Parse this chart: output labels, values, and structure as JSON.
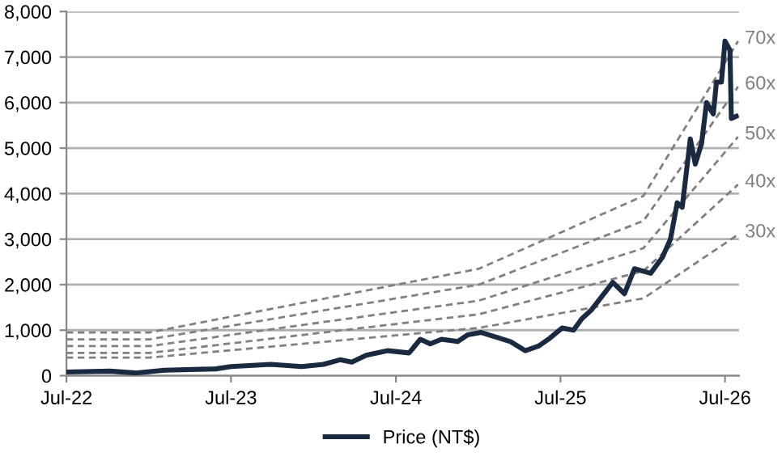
{
  "chart_data": {
    "type": "line",
    "xlim": [
      "2022-07-01",
      "2026-08-01"
    ],
    "xticks": [
      {
        "value": "2022-07-01",
        "label": "Jul-22"
      },
      {
        "value": "2023-07-01",
        "label": "Jul-23"
      },
      {
        "value": "2024-07-01",
        "label": "Jul-24"
      },
      {
        "value": "2025-07-01",
        "label": "Jul-25"
      },
      {
        "value": "2026-07-01",
        "label": "Jul-26"
      }
    ],
    "ylim": [
      0,
      8000
    ],
    "yticks": [
      0,
      {
        "value": 1000,
        "label": "1,000"
      },
      {
        "value": 2000,
        "label": "2,000"
      },
      {
        "value": 3000,
        "label": "3,000"
      },
      {
        "value": 4000,
        "label": "4,000"
      },
      {
        "value": 5000,
        "label": "5,000"
      },
      {
        "value": 6000,
        "label": "6,000"
      },
      {
        "value": 7000,
        "label": "7,000"
      },
      {
        "value": 8000,
        "label": "8,000"
      }
    ],
    "grid": "y",
    "legend": "bottom",
    "series": [
      {
        "name": "70x",
        "color": "#808080",
        "line_style": "dashed",
        "x": [
          "2022-07-01",
          "2023-01-01",
          "2025-01-01",
          "2026-01-01",
          "2026-07-30"
        ],
        "values": [
          950,
          950,
          2350,
          3950,
          7350
        ]
      },
      {
        "name": "60x",
        "color": "#808080",
        "line_style": "dashed",
        "x": [
          "2022-07-01",
          "2023-01-01",
          "2025-01-01",
          "2026-01-01",
          "2026-07-30"
        ],
        "values": [
          800,
          800,
          2000,
          3400,
          6350
        ]
      },
      {
        "name": "50x",
        "color": "#808080",
        "line_style": "dashed",
        "x": [
          "2022-07-01",
          "2023-01-01",
          "2025-01-01",
          "2026-01-01",
          "2026-07-30"
        ],
        "values": [
          650,
          650,
          1650,
          2800,
          5250
        ]
      },
      {
        "name": "40x",
        "color": "#808080",
        "line_style": "dashed",
        "x": [
          "2022-07-01",
          "2023-01-01",
          "2025-01-01",
          "2026-01-01",
          "2026-07-30"
        ],
        "values": [
          500,
          500,
          1350,
          2300,
          4200
        ]
      },
      {
        "name": "30x",
        "color": "#808080",
        "line_style": "dashed",
        "x": [
          "2022-07-01",
          "2023-01-01",
          "2025-01-01",
          "2026-01-01",
          "2026-07-30"
        ],
        "values": [
          400,
          400,
          1050,
          1700,
          3100
        ]
      },
      {
        "name": "Price (NT$)",
        "color": "#1a2a40",
        "line_style": "solid",
        "x": [
          "2022-07-01",
          "2022-10-05",
          "2022-12-01",
          "2023-02-03",
          "2023-05-28",
          "2023-07-01",
          "2023-09-27",
          "2023-12-05",
          "2024-01-22",
          "2024-02-28",
          "2024-03-25",
          "2024-04-26",
          "2024-06-13",
          "2024-07-30",
          "2024-08-24",
          "2024-09-15",
          "2024-10-10",
          "2024-11-15",
          "2024-12-07",
          "2025-01-06",
          "2025-02-07",
          "2025-03-12",
          "2025-04-14",
          "2025-05-13",
          "2025-06-04",
          "2025-07-05",
          "2025-07-30",
          "2025-08-17",
          "2025-09-08",
          "2025-10-25",
          "2025-11-20",
          "2025-12-12",
          "2026-01-17",
          "2026-02-12",
          "2026-03-02",
          "2026-03-17",
          "2026-03-28",
          "2026-04-15",
          "2026-04-26",
          "2026-05-10",
          "2026-05-21",
          "2026-06-05",
          "2026-06-12",
          "2026-06-23",
          "2026-07-01",
          "2026-07-12",
          "2026-07-15",
          "2026-07-26"
        ],
        "values": [
          80,
          100,
          60,
          120,
          150,
          200,
          250,
          200,
          250,
          350,
          300,
          450,
          550,
          500,
          800,
          700,
          800,
          750,
          900,
          950,
          850,
          750,
          550,
          650,
          800,
          1050,
          1000,
          1250,
          1450,
          2050,
          1800,
          2350,
          2250,
          2600,
          3000,
          3800,
          3700,
          5200,
          4650,
          5100,
          6000,
          5750,
          6450,
          6450,
          7350,
          7150,
          5650,
          5700
        ]
      }
    ]
  }
}
